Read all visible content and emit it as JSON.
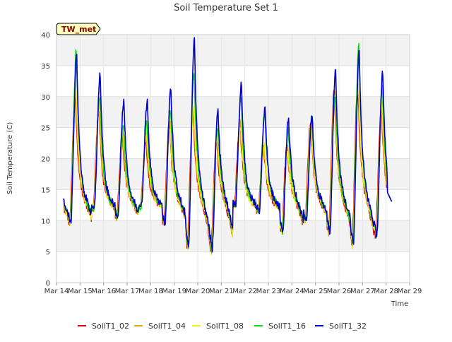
{
  "chart_data": {
    "type": "line",
    "title": "Soil Temperature Set 1",
    "xlabel": "Time",
    "ylabel": "Soil Temperature (C)",
    "station_tag": "TW_met",
    "ylim": [
      0,
      40
    ],
    "yticks": [
      0,
      5,
      10,
      15,
      20,
      25,
      30,
      35,
      40
    ],
    "xlim": [
      14,
      29
    ],
    "xticks": [
      {
        "v": 14,
        "label": "Mar 14"
      },
      {
        "v": 15,
        "label": "Mar 15"
      },
      {
        "v": 16,
        "label": "Mar 16"
      },
      {
        "v": 17,
        "label": "Mar 17"
      },
      {
        "v": 18,
        "label": "Mar 18"
      },
      {
        "v": 19,
        "label": "Mar 19"
      },
      {
        "v": 20,
        "label": "Mar 20"
      },
      {
        "v": 21,
        "label": "Mar 21"
      },
      {
        "v": 22,
        "label": "Mar 22"
      },
      {
        "v": 23,
        "label": "Mar 23"
      },
      {
        "v": 24,
        "label": "Mar 24"
      },
      {
        "v": 25,
        "label": "Mar 25"
      },
      {
        "v": 26,
        "label": "Mar 26"
      },
      {
        "v": 27,
        "label": "Mar 27"
      },
      {
        "v": 28,
        "label": "Mar 28"
      },
      {
        "v": 29,
        "label": "Mar 29"
      }
    ],
    "grid": true,
    "legend_position": "bottom",
    "series": [
      {
        "name": "SoilT1_02",
        "color": "#dd0000",
        "peaks": [
          30,
          28,
          24,
          23,
          26,
          28,
          23,
          26,
          22,
          22,
          26,
          31,
          32,
          28
        ]
      },
      {
        "name": "SoilT1_04",
        "color": "#f0a000",
        "peaks": [
          31,
          28,
          24,
          24,
          26,
          28,
          23,
          26,
          22,
          22,
          26,
          31,
          32,
          28
        ]
      },
      {
        "name": "SoilT1_08",
        "color": "#f0f000",
        "peaks": [
          32,
          29,
          25,
          24,
          25,
          29,
          24,
          25,
          22,
          21,
          25,
          30,
          32,
          29
        ]
      },
      {
        "name": "SoilT1_16",
        "color": "#00dd00",
        "peaks": [
          37.5,
          30,
          25.5,
          26,
          28,
          34,
          25.5,
          29.5,
          27.5,
          24.5,
          27,
          30.5,
          38.5,
          31.5
        ]
      },
      {
        "name": "SoilT1_32",
        "color": "#0000cc",
        "peaks": [
          36.5,
          33.5,
          29.5,
          29,
          31.5,
          39.2,
          27.7,
          32,
          27.8,
          26.7,
          27,
          34.3,
          37.3,
          34
        ]
      }
    ],
    "daily_minimum_approx": [
      9.6,
      12,
      10.5,
      12.2,
      9.5,
      5.8,
      5.0,
      12.5,
      11.5,
      8.2,
      10.0,
      8.0,
      6.0,
      7.5
    ],
    "end_value_approx": 13.0
  }
}
